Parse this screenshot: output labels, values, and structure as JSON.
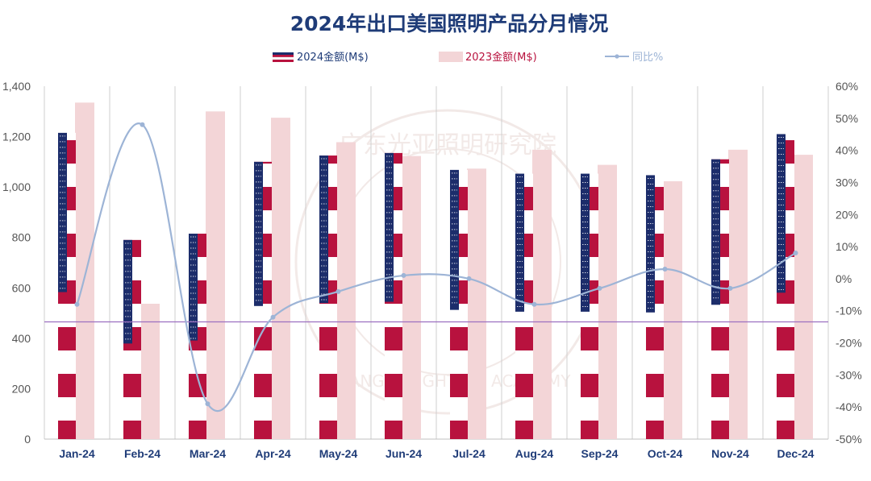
{
  "chart_data": {
    "type": "bar",
    "title": "2024年出口美国照明产品分月情况",
    "categories": [
      "Jan-24",
      "Feb-24",
      "Mar-24",
      "Apr-24",
      "May-24",
      "Jun-24",
      "Jul-24",
      "Aug-24",
      "Sep-24",
      "Oct-24",
      "Nov-24",
      "Dec-24"
    ],
    "series": [
      {
        "name": "2024金额(M$)",
        "axis": "left",
        "values": [
          1215,
          790,
          815,
          1100,
          1125,
          1135,
          1068,
          1053,
          1053,
          1047,
          1110,
          1210
        ]
      },
      {
        "name": "2023金额(M$)",
        "axis": "left",
        "values": [
          1335,
          537,
          1300,
          1275,
          1178,
          1123,
          1073,
          1148,
          1088,
          1023,
          1148,
          1128
        ]
      },
      {
        "name": "同比%",
        "axis": "right",
        "type": "line",
        "values": [
          -8,
          48,
          -39,
          -12,
          -4,
          1,
          0,
          -8,
          -3,
          3,
          -3,
          8
        ]
      }
    ],
    "ylim": [
      0,
      1400
    ],
    "y2lim": [
      -50,
      60
    ],
    "yticks": [
      "0",
      "200",
      "400",
      "600",
      "800",
      "1,000",
      "1,200",
      "1,400"
    ],
    "y2ticks": [
      "-50%",
      "-40%",
      "-30%",
      "-20%",
      "-10%",
      "0%",
      "10%",
      "20%",
      "30%",
      "40%",
      "50%",
      "60%"
    ],
    "reference_line_value": 465,
    "grid": "vertical",
    "legend_position": "top",
    "colors": {
      "us_red": "#b8123e",
      "us_blue": "#1c2d6b",
      "white": "#ffffff",
      "bar2023": "#f3d5d7",
      "line": "#9db4d6",
      "ref_line": "#9c6fc0",
      "axis_text": "#1f3c78"
    }
  },
  "watermark": {
    "text": "广东光亚照明研究院",
    "sub": "GUANGYA LIGHTING ACADEMY"
  }
}
